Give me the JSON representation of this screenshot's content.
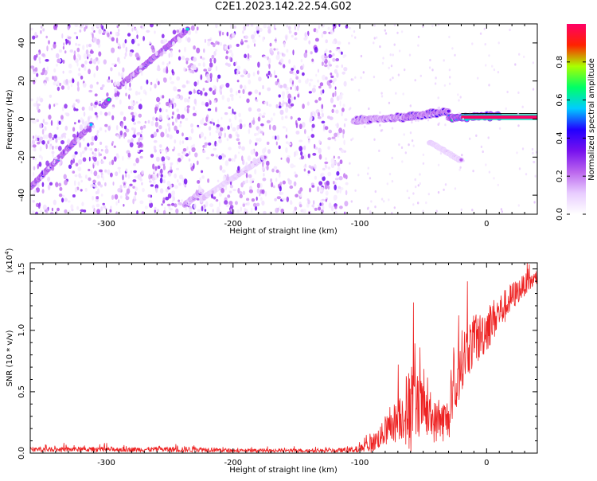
{
  "title": "C2E1.2023.142.22.54.G02",
  "colors": {
    "signal": "#ee2222",
    "frame": "#000000",
    "colormap": [
      "#ffffff",
      "#e8ccff",
      "#bb66ee",
      "#7711ee",
      "#2200ff",
      "#00ccff",
      "#00ff66",
      "#aaff00",
      "#ff2200",
      "#ff0066"
    ]
  },
  "chart_data": [
    {
      "type": "heatmap",
      "xlabel": "Height of straight line (km)",
      "ylabel": "Frequency (Hz)",
      "xlim": [
        -360,
        40
      ],
      "ylim": [
        -50,
        50
      ],
      "xticks": [
        -300,
        -200,
        -100,
        0
      ],
      "yticks": [
        -40,
        -20,
        0,
        20,
        40
      ],
      "x_tick_labels": [
        "-300",
        "-200",
        "-100",
        "0"
      ],
      "y_tick_labels": [
        "-40",
        "-20",
        "0",
        "20",
        "40"
      ],
      "colorbar": {
        "label": "Normalized spectral amplitude",
        "range": [
          0,
          1
        ],
        "ticks": [
          0.0,
          0.2,
          0.4,
          0.6,
          0.8
        ],
        "tick_labels": [
          "0.0",
          "0.2",
          "0.4",
          "0.6",
          "0.8"
        ]
      },
      "features": [
        {
          "kind": "streak",
          "x": [
            -360,
            -312
          ],
          "y": [
            -36,
            -3
          ],
          "amplitude": 0.5
        },
        {
          "kind": "streak",
          "x": [
            -302,
            -298
          ],
          "y": [
            7,
            10
          ],
          "amplitude": 0.55
        },
        {
          "kind": "streak",
          "x": [
            -290,
            -236
          ],
          "y": [
            17,
            47
          ],
          "amplitude": 0.5
        },
        {
          "kind": "streak",
          "x": [
            -238,
            -225
          ],
          "y": [
            -45,
            -38
          ],
          "amplitude": 0.3
        },
        {
          "kind": "streak",
          "x": [
            -225,
            -175
          ],
          "y": [
            -42,
            -20
          ],
          "amplitude": 0.2
        },
        {
          "kind": "band",
          "x": [
            -105,
            -65
          ],
          "y": [
            -1,
            1
          ],
          "amplitude": 0.35
        },
        {
          "kind": "band",
          "x": [
            -65,
            -30
          ],
          "y": [
            1,
            4
          ],
          "amplitude": 0.45
        },
        {
          "kind": "band",
          "x": [
            -30,
            10
          ],
          "y": [
            0.5,
            2
          ],
          "amplitude": 0.55
        },
        {
          "kind": "band",
          "x": [
            -20,
            40
          ],
          "y": [
            1,
            1
          ],
          "amplitude": 1.0
        },
        {
          "kind": "streak",
          "x": [
            -45,
            -20
          ],
          "y": [
            -12,
            -22
          ],
          "amplitude": 0.2
        },
        {
          "kind": "noise",
          "x": [
            -360,
            -110
          ],
          "y": [
            -50,
            50
          ],
          "amplitude": 0.1
        }
      ]
    },
    {
      "type": "line",
      "xlabel": "Height of straight line (km)",
      "ylabel": "SNR (10 * v/v)",
      "scale_label": "(x10",
      "scale_exp": "4",
      "scale_close": ")",
      "xlim": [
        -360,
        40
      ],
      "ylim": [
        0,
        1.55
      ],
      "xticks": [
        -300,
        -200,
        -100,
        0
      ],
      "yticks": [
        0.0,
        0.5,
        1.0,
        1.5
      ],
      "x_tick_labels": [
        "-300",
        "-200",
        "-100",
        "0"
      ],
      "y_tick_labels": [
        "0.0",
        "0.5",
        "1.0",
        "1.5"
      ],
      "series": [
        {
          "x": [
            -360,
            -340,
            -320,
            -300,
            -280,
            -260,
            -240,
            -220,
            -200,
            -180,
            -160,
            -140,
            -120,
            -100,
            -90,
            -80,
            -75,
            -70,
            -65,
            -60,
            -55,
            -50,
            -45,
            -40,
            -35,
            -30,
            -25,
            -20,
            -15,
            -10,
            -5,
            0,
            5,
            10,
            15,
            20,
            25,
            30,
            35,
            40
          ],
          "values": [
            0.03,
            0.03,
            0.03,
            0.03,
            0.03,
            0.03,
            0.03,
            0.03,
            0.02,
            0.02,
            0.02,
            0.02,
            0.02,
            0.03,
            0.08,
            0.17,
            0.22,
            0.28,
            0.33,
            0.35,
            0.38,
            0.38,
            0.28,
            0.25,
            0.26,
            0.28,
            0.45,
            0.75,
            0.85,
            0.9,
            0.95,
            1.02,
            1.08,
            1.15,
            1.2,
            1.27,
            1.32,
            1.37,
            1.4,
            1.42
          ],
          "spread": [
            0.04,
            0.04,
            0.04,
            0.04,
            0.04,
            0.04,
            0.05,
            0.04,
            0.03,
            0.03,
            0.03,
            0.03,
            0.03,
            0.06,
            0.15,
            0.22,
            0.3,
            0.38,
            0.45,
            0.8,
            0.55,
            0.4,
            0.35,
            0.35,
            0.35,
            0.35,
            0.45,
            0.5,
            0.45,
            0.45,
            0.4,
            0.4,
            0.35,
            0.3,
            0.28,
            0.25,
            0.2,
            0.18,
            0.15,
            0.12
          ]
        }
      ]
    }
  ]
}
